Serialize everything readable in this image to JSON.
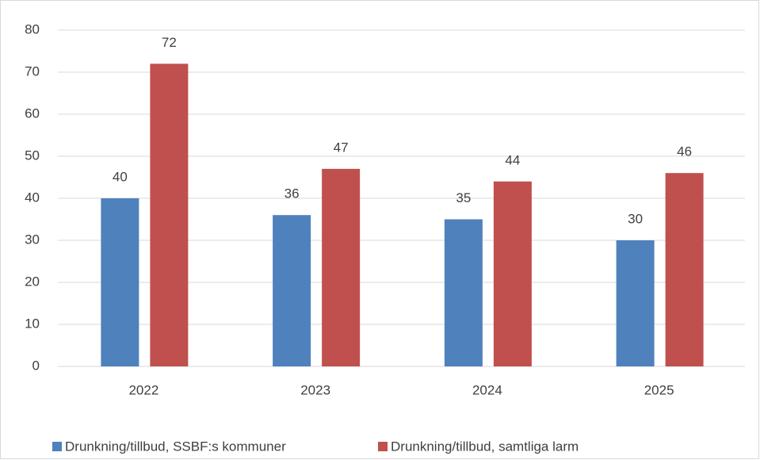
{
  "chart_data": {
    "type": "bar",
    "categories": [
      "2022",
      "2023",
      "2024",
      "2025"
    ],
    "series": [
      {
        "name": "Drunkning/tillbud, SSBF:s kommuner",
        "color": "#4f81bd",
        "values": [
          40,
          36,
          35,
          30
        ]
      },
      {
        "name": "Drunkning/tillbud, samtliga larm",
        "color": "#c0504d",
        "values": [
          72,
          47,
          44,
          46
        ]
      }
    ],
    "ylim": [
      0,
      80
    ],
    "yticks": [
      0,
      10,
      20,
      30,
      40,
      50,
      60,
      70,
      80
    ],
    "grid": true,
    "data_labels": true,
    "legend": "bottom"
  }
}
